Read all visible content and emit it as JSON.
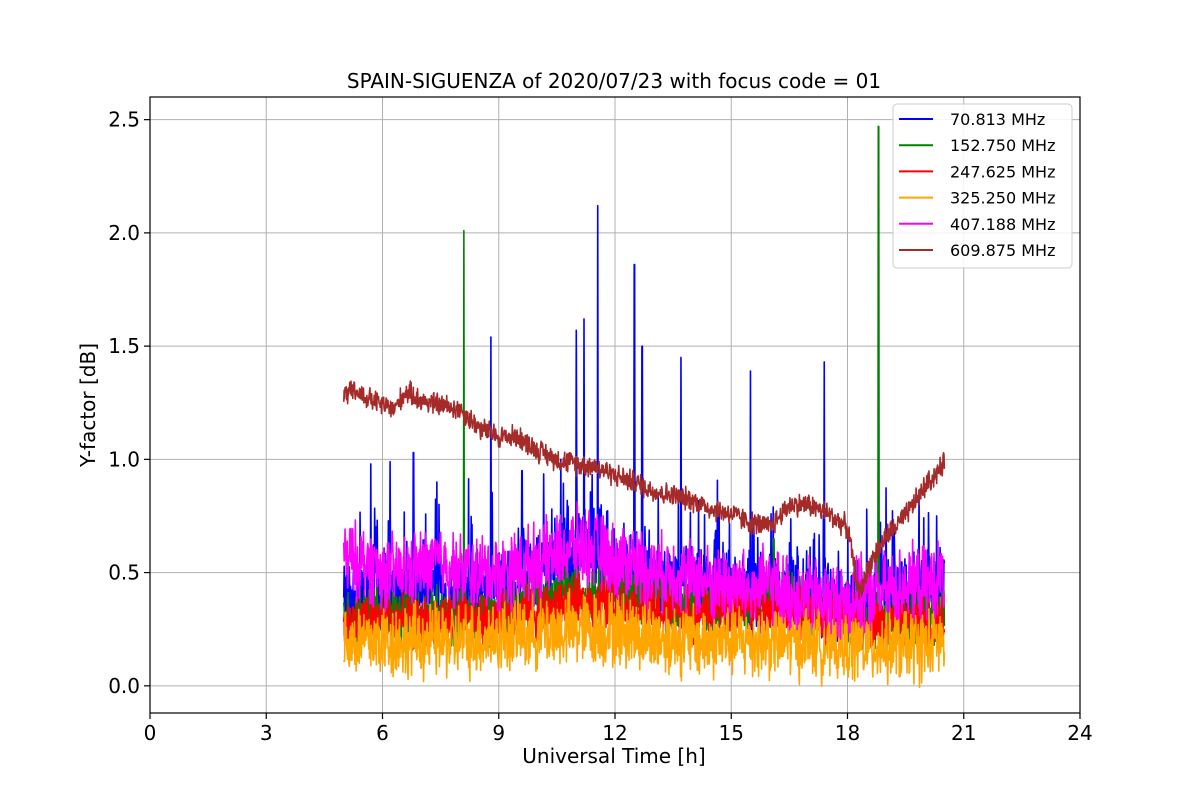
{
  "chart_data": {
    "type": "line",
    "title": "SPAIN-SIGUENZA of 2020/07/23 with focus code = 01",
    "xlabel": "Universal Time [h]",
    "ylabel": "Y-factor [dB]",
    "xlim": [
      0,
      24
    ],
    "ylim": [
      -0.12,
      2.6
    ],
    "xticks": [
      0,
      3,
      6,
      9,
      12,
      15,
      18,
      21,
      24
    ],
    "yticks": [
      0.0,
      0.5,
      1.0,
      1.5,
      2.0,
      2.5
    ],
    "xtick_labels": [
      "0",
      "3",
      "6",
      "9",
      "12",
      "15",
      "18",
      "21",
      "24"
    ],
    "ytick_labels": [
      "0.0",
      "0.5",
      "1.0",
      "1.5",
      "2.0",
      "2.5"
    ],
    "grid": true,
    "legend_position": "top-right",
    "series": [
      {
        "name": " 70.813 MHz",
        "color": "#0000ff",
        "points": [
          [
            5.0,
            0.35
          ],
          [
            5.5,
            0.45
          ],
          [
            6.0,
            0.42
          ],
          [
            6.5,
            0.4
          ],
          [
            7.0,
            0.45
          ],
          [
            7.5,
            0.42
          ],
          [
            8.0,
            0.38
          ],
          [
            8.5,
            0.4
          ],
          [
            9.0,
            0.42
          ],
          [
            9.5,
            0.45
          ],
          [
            10.0,
            0.5
          ],
          [
            10.5,
            0.55
          ],
          [
            11.0,
            0.6
          ],
          [
            11.5,
            0.6
          ],
          [
            12.0,
            0.55
          ],
          [
            12.5,
            0.5
          ],
          [
            13.0,
            0.45
          ],
          [
            13.5,
            0.42
          ],
          [
            14.0,
            0.4
          ],
          [
            14.5,
            0.42
          ],
          [
            15.0,
            0.45
          ],
          [
            15.5,
            0.4
          ],
          [
            16.0,
            0.42
          ],
          [
            16.5,
            0.4
          ],
          [
            17.0,
            0.38
          ],
          [
            17.5,
            0.36
          ],
          [
            18.0,
            0.35
          ],
          [
            18.5,
            0.38
          ],
          [
            19.0,
            0.4
          ],
          [
            19.5,
            0.4
          ],
          [
            20.0,
            0.42
          ],
          [
            20.5,
            0.45
          ]
        ],
        "peaks": [
          [
            5.7,
            0.98
          ],
          [
            6.2,
            0.99
          ],
          [
            6.8,
            1.03
          ],
          [
            7.4,
            0.9
          ],
          [
            8.8,
            1.54
          ],
          [
            9.6,
            0.95
          ],
          [
            10.6,
            1.0
          ],
          [
            11.0,
            1.57
          ],
          [
            11.2,
            1.62
          ],
          [
            11.55,
            2.12
          ],
          [
            12.5,
            1.86
          ],
          [
            12.7,
            1.5
          ],
          [
            13.7,
            1.45
          ],
          [
            15.5,
            1.39
          ],
          [
            17.4,
            1.43
          ],
          [
            18.5,
            0.78
          ],
          [
            20.3,
            0.75
          ]
        ]
      },
      {
        "name": "152.750 MHz",
        "color": "#008000",
        "points": [
          [
            5.0,
            0.3
          ],
          [
            6.0,
            0.32
          ],
          [
            7.0,
            0.3
          ],
          [
            8.0,
            0.3
          ],
          [
            9.0,
            0.33
          ],
          [
            10.0,
            0.38
          ],
          [
            11.0,
            0.42
          ],
          [
            12.0,
            0.42
          ],
          [
            13.0,
            0.38
          ],
          [
            14.0,
            0.36
          ],
          [
            15.0,
            0.38
          ],
          [
            16.0,
            0.4
          ],
          [
            17.0,
            0.35
          ],
          [
            18.0,
            0.3
          ],
          [
            19.0,
            0.3
          ],
          [
            20.0,
            0.3
          ],
          [
            20.5,
            0.32
          ]
        ],
        "peaks": [
          [
            8.1,
            2.01
          ],
          [
            18.8,
            2.47
          ],
          [
            16.1,
            0.65
          ]
        ]
      },
      {
        "name": "247.625 MHz",
        "color": "#ff0000",
        "points": [
          [
            5.0,
            0.28
          ],
          [
            6.0,
            0.3
          ],
          [
            7.0,
            0.28
          ],
          [
            8.0,
            0.28
          ],
          [
            9.0,
            0.3
          ],
          [
            10.0,
            0.33
          ],
          [
            11.0,
            0.36
          ],
          [
            12.0,
            0.36
          ],
          [
            13.0,
            0.33
          ],
          [
            14.0,
            0.32
          ],
          [
            15.0,
            0.34
          ],
          [
            16.0,
            0.35
          ],
          [
            17.0,
            0.32
          ],
          [
            18.0,
            0.28
          ],
          [
            19.0,
            0.28
          ],
          [
            20.0,
            0.28
          ],
          [
            20.5,
            0.3
          ]
        ],
        "peaks": []
      },
      {
        "name": "325.250 MHz",
        "color": "#ffa500",
        "points": [
          [
            5.0,
            0.2
          ],
          [
            6.0,
            0.2
          ],
          [
            7.0,
            0.2
          ],
          [
            8.0,
            0.2
          ],
          [
            9.0,
            0.22
          ],
          [
            10.0,
            0.24
          ],
          [
            11.0,
            0.25
          ],
          [
            12.0,
            0.25
          ],
          [
            13.0,
            0.22
          ],
          [
            14.0,
            0.2
          ],
          [
            15.0,
            0.2
          ],
          [
            16.0,
            0.2
          ],
          [
            17.0,
            0.2
          ],
          [
            18.0,
            0.18
          ],
          [
            19.0,
            0.18
          ],
          [
            20.0,
            0.18
          ],
          [
            20.5,
            0.2
          ]
        ],
        "peaks": []
      },
      {
        "name": "407.188 MHz",
        "color": "#ff00ff",
        "points": [
          [
            5.0,
            0.55
          ],
          [
            5.5,
            0.55
          ],
          [
            6.0,
            0.5
          ],
          [
            6.5,
            0.5
          ],
          [
            7.0,
            0.52
          ],
          [
            7.5,
            0.55
          ],
          [
            8.0,
            0.5
          ],
          [
            8.5,
            0.5
          ],
          [
            9.0,
            0.5
          ],
          [
            9.5,
            0.52
          ],
          [
            10.0,
            0.55
          ],
          [
            10.5,
            0.58
          ],
          [
            11.0,
            0.62
          ],
          [
            11.5,
            0.6
          ],
          [
            12.0,
            0.55
          ],
          [
            12.5,
            0.55
          ],
          [
            13.0,
            0.5
          ],
          [
            13.5,
            0.5
          ],
          [
            14.0,
            0.48
          ],
          [
            14.5,
            0.45
          ],
          [
            15.0,
            0.45
          ],
          [
            15.5,
            0.42
          ],
          [
            16.0,
            0.45
          ],
          [
            16.5,
            0.4
          ],
          [
            17.0,
            0.4
          ],
          [
            17.5,
            0.38
          ],
          [
            18.0,
            0.38
          ],
          [
            18.5,
            0.4
          ],
          [
            19.0,
            0.42
          ],
          [
            19.5,
            0.45
          ],
          [
            20.0,
            0.45
          ],
          [
            20.5,
            0.48
          ]
        ],
        "peaks": []
      },
      {
        "name": "609.875 MHz",
        "color": "#a52a2a",
        "points": [
          [
            5.0,
            1.28
          ],
          [
            5.3,
            1.3
          ],
          [
            5.6,
            1.27
          ],
          [
            6.0,
            1.24
          ],
          [
            6.3,
            1.22
          ],
          [
            6.6,
            1.3
          ],
          [
            7.0,
            1.26
          ],
          [
            7.5,
            1.24
          ],
          [
            8.0,
            1.22
          ],
          [
            8.5,
            1.14
          ],
          [
            9.0,
            1.1
          ],
          [
            9.5,
            1.1
          ],
          [
            10.0,
            1.04
          ],
          [
            10.5,
            1.0
          ],
          [
            11.0,
            0.98
          ],
          [
            11.5,
            0.97
          ],
          [
            12.0,
            0.93
          ],
          [
            12.5,
            0.9
          ],
          [
            13.0,
            0.86
          ],
          [
            13.5,
            0.84
          ],
          [
            14.0,
            0.82
          ],
          [
            14.5,
            0.78
          ],
          [
            15.0,
            0.76
          ],
          [
            15.5,
            0.72
          ],
          [
            16.0,
            0.7
          ],
          [
            16.5,
            0.8
          ],
          [
            17.0,
            0.8
          ],
          [
            17.5,
            0.76
          ],
          [
            18.0,
            0.7
          ],
          [
            18.3,
            0.4
          ],
          [
            18.6,
            0.55
          ],
          [
            19.0,
            0.66
          ],
          [
            19.5,
            0.75
          ],
          [
            20.0,
            0.88
          ],
          [
            20.5,
            0.98
          ]
        ],
        "peaks": []
      }
    ]
  }
}
